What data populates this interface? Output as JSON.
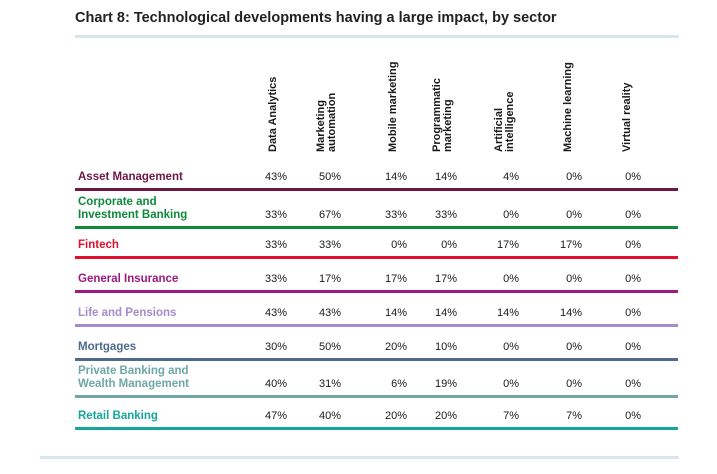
{
  "chart_data": {
    "type": "table",
    "title": "Chart 8: Technological developments having a large impact, by sector",
    "columns": [
      [
        "Data Analytics"
      ],
      [
        "Marketing",
        "automation"
      ],
      [
        "Mobile marketing"
      ],
      [
        "Programmatic",
        "marketing"
      ],
      [
        "Artificial",
        "intelligence"
      ],
      [
        "Machine learning"
      ],
      [
        "Virtual reality"
      ]
    ],
    "rows": [
      {
        "label": [
          "Asset Management"
        ],
        "color": "#6e1846",
        "values": [
          "43%",
          "50%",
          "14%",
          "14%",
          "4%",
          "0%",
          "0%"
        ]
      },
      {
        "label": [
          "Corporate and",
          "Investment Banking"
        ],
        "color": "#0f8a3c",
        "values": [
          "33%",
          "67%",
          "33%",
          "33%",
          "0%",
          "0%",
          "0%"
        ]
      },
      {
        "label": [
          "Fintech"
        ],
        "color": "#e0102e",
        "values": [
          "33%",
          "33%",
          "0%",
          "0%",
          "17%",
          "17%",
          "0%"
        ]
      },
      {
        "label": [
          "General Insurance"
        ],
        "color": "#9c1a82",
        "values": [
          "33%",
          "17%",
          "17%",
          "17%",
          "0%",
          "0%",
          "0%"
        ]
      },
      {
        "label": [
          "Life and Pensions"
        ],
        "color": "#a58bc9",
        "values": [
          "43%",
          "43%",
          "14%",
          "14%",
          "14%",
          "14%",
          "0%"
        ]
      },
      {
        "label": [
          "Mortgages"
        ],
        "color": "#4e6a8c",
        "values": [
          "30%",
          "50%",
          "20%",
          "10%",
          "0%",
          "0%",
          "0%"
        ]
      },
      {
        "label": [
          "Private Banking and",
          "Wealth Management"
        ],
        "color": "#6fa7a7",
        "values": [
          "40%",
          "31%",
          "6%",
          "19%",
          "0%",
          "0%",
          "0%"
        ]
      },
      {
        "label": [
          "Retail Banking"
        ],
        "color": "#14a698",
        "values": [
          "47%",
          "40%",
          "20%",
          "20%",
          "7%",
          "7%",
          "0%"
        ]
      }
    ]
  }
}
